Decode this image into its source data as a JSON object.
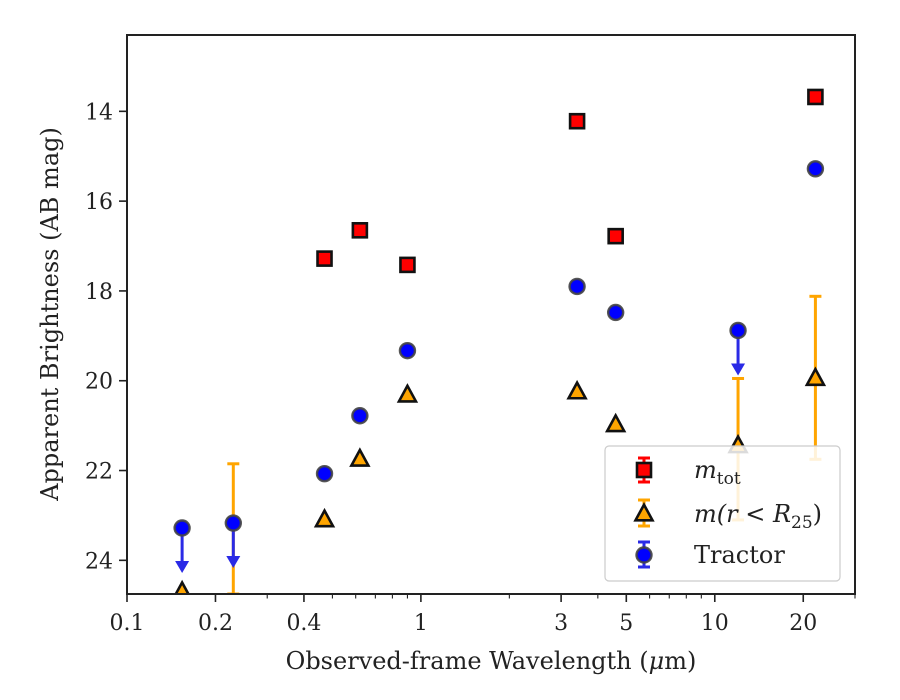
{
  "chart_data": {
    "type": "scatter",
    "xlabel_prefix": "Observed-frame Wavelength (",
    "xlabel_mu": "μ",
    "xlabel_suffix": "m)",
    "ylabel": "Apparent Brightness (AB mag)",
    "xscale": "log",
    "xlim": [
      0.1,
      30
    ],
    "ylim": [
      24.75,
      12.3
    ],
    "y_inverted": true,
    "x_ticks": [
      {
        "value": 0.1,
        "label": "0.1"
      },
      {
        "value": 0.2,
        "label": "0.2"
      },
      {
        "value": 0.4,
        "label": "0.4"
      },
      {
        "value": 1,
        "label": "1"
      },
      {
        "value": 3,
        "label": "3"
      },
      {
        "value": 5,
        "label": "5"
      },
      {
        "value": 10,
        "label": "10"
      },
      {
        "value": 20,
        "label": "20"
      }
    ],
    "y_ticks": [
      {
        "value": 14,
        "label": "14"
      },
      {
        "value": 16,
        "label": "16"
      },
      {
        "value": 18,
        "label": "18"
      },
      {
        "value": 20,
        "label": "20"
      },
      {
        "value": 22,
        "label": "22"
      },
      {
        "value": 24,
        "label": "24"
      }
    ],
    "legend_position": "lower-right",
    "series": [
      {
        "key": "mtot",
        "legend_main": "m",
        "legend_sub": "tot",
        "marker": "square",
        "color": "#ff0000",
        "edge": "#111111",
        "points": [
          {
            "x": 0.47,
            "y": 17.28
          },
          {
            "x": 0.62,
            "y": 16.65
          },
          {
            "x": 0.9,
            "y": 17.42
          },
          {
            "x": 3.4,
            "y": 14.22
          },
          {
            "x": 4.6,
            "y": 16.78
          },
          {
            "x": 22,
            "y": 13.68
          }
        ]
      },
      {
        "key": "mr25",
        "legend_main": "m(r < R",
        "legend_sub": "25",
        "legend_tail": ")",
        "marker": "triangle",
        "color": "#ffa500",
        "edge": "#111111",
        "points": [
          {
            "x": 0.154,
            "y": 24.7
          },
          {
            "x": 0.23,
            "y": null,
            "yerr_top": 21.85,
            "yerr_bottom": 24.75
          },
          {
            "x": 0.47,
            "y": 23.1
          },
          {
            "x": 0.62,
            "y": 21.75
          },
          {
            "x": 0.9,
            "y": 20.32
          },
          {
            "x": 3.4,
            "y": 20.25
          },
          {
            "x": 4.6,
            "y": 20.98
          },
          {
            "x": 12,
            "y": 21.45,
            "yerr_top": 19.95,
            "yerr_bottom": 23.1
          },
          {
            "x": 22,
            "y": 19.95,
            "yerr_top": 18.12,
            "yerr_bottom": 21.75
          }
        ]
      },
      {
        "key": "tractor",
        "legend_main": "Tractor",
        "marker": "circle",
        "color": "#0000ff",
        "edge": "#444444",
        "points": [
          {
            "x": 0.154,
            "y": 23.28,
            "upper_limit": true
          },
          {
            "x": 0.23,
            "y": 23.17,
            "upper_limit": true
          },
          {
            "x": 0.47,
            "y": 22.07
          },
          {
            "x": 0.62,
            "y": 20.78
          },
          {
            "x": 0.9,
            "y": 19.33
          },
          {
            "x": 3.4,
            "y": 17.9
          },
          {
            "x": 4.6,
            "y": 18.48
          },
          {
            "x": 12,
            "y": 18.88,
            "upper_limit": true
          },
          {
            "x": 22,
            "y": 15.28
          }
        ]
      }
    ]
  }
}
